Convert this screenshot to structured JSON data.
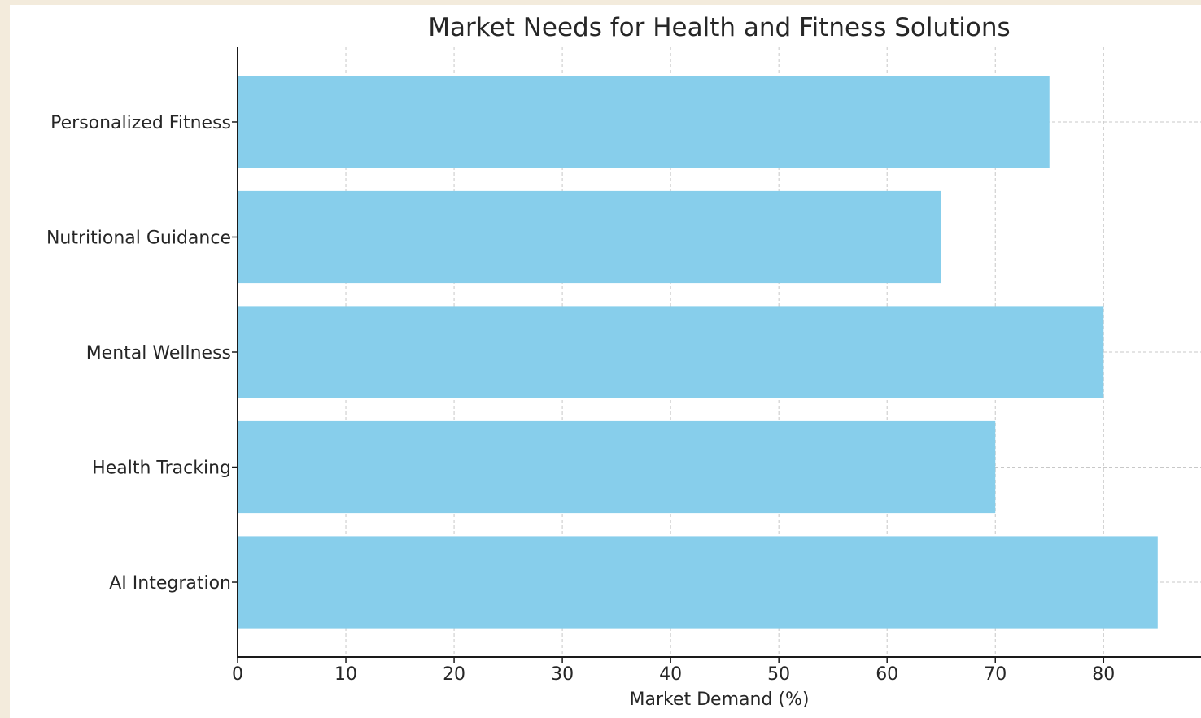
{
  "chart_data": {
    "type": "bar",
    "orientation": "horizontal",
    "title": "Market Needs for Health and Fitness Solutions",
    "xlabel": "Market Demand (%)",
    "ylabel": "",
    "categories": [
      "Personalized Fitness",
      "Nutritional Guidance",
      "Mental Wellness",
      "Health Tracking",
      "AI Integration"
    ],
    "values": [
      75,
      65,
      80,
      70,
      85
    ],
    "xlim": [
      0,
      89
    ],
    "xticks": [
      "0",
      "10",
      "20",
      "30",
      "40",
      "50",
      "60",
      "70",
      "80"
    ],
    "grid": true,
    "bar_color": "#87ceeb"
  }
}
